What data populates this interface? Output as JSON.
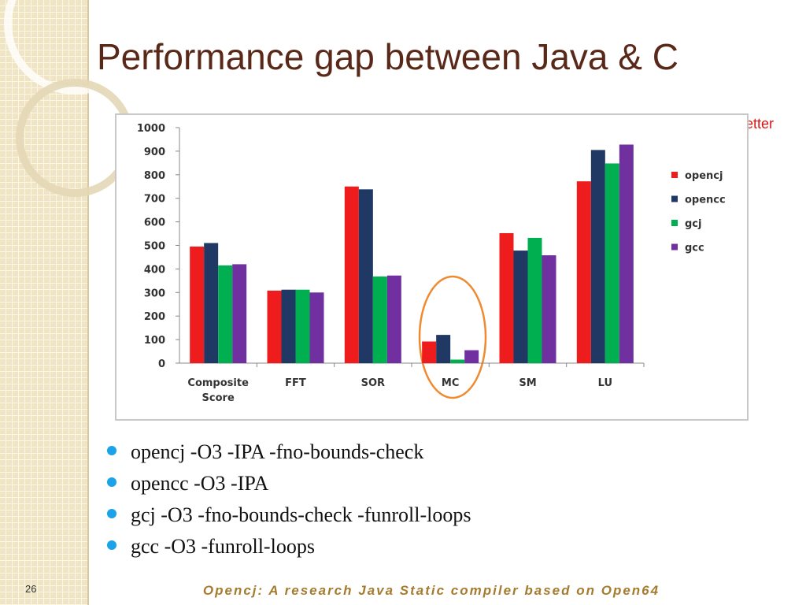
{
  "chart_data": {
    "type": "bar",
    "title": "Performance gap between Java & C",
    "annotation": "higher is better",
    "categories": [
      "Composite Score",
      "FFT",
      "SOR",
      "MC",
      "SM",
      "LU"
    ],
    "series": [
      {
        "name": "opencj",
        "color": "#ee1c1c",
        "values": [
          495,
          308,
          750,
          92,
          552,
          772
        ]
      },
      {
        "name": "opencc",
        "color": "#1f3864",
        "values": [
          510,
          312,
          738,
          120,
          478,
          905
        ]
      },
      {
        "name": "gcj",
        "color": "#00b050",
        "values": [
          415,
          312,
          368,
          15,
          532,
          848
        ]
      },
      {
        "name": "gcc",
        "color": "#7030a0",
        "values": [
          420,
          300,
          372,
          55,
          458,
          928
        ]
      }
    ],
    "ylim": [
      0,
      1000
    ],
    "yticks": [
      0,
      100,
      200,
      300,
      400,
      500,
      600,
      700,
      800,
      900,
      1000
    ],
    "grid": false,
    "legend": "right"
  },
  "bullets": [
    "opencj -O3 -IPA -fno-bounds-check",
    "opencc -O3 -IPA",
    "gcj -O3 -fno-bounds-check -funroll-loops",
    "gcc -O3 -funroll-loops"
  ],
  "footer": "Opencj: A research Java Static compiler based on Open64",
  "page_number": 26
}
